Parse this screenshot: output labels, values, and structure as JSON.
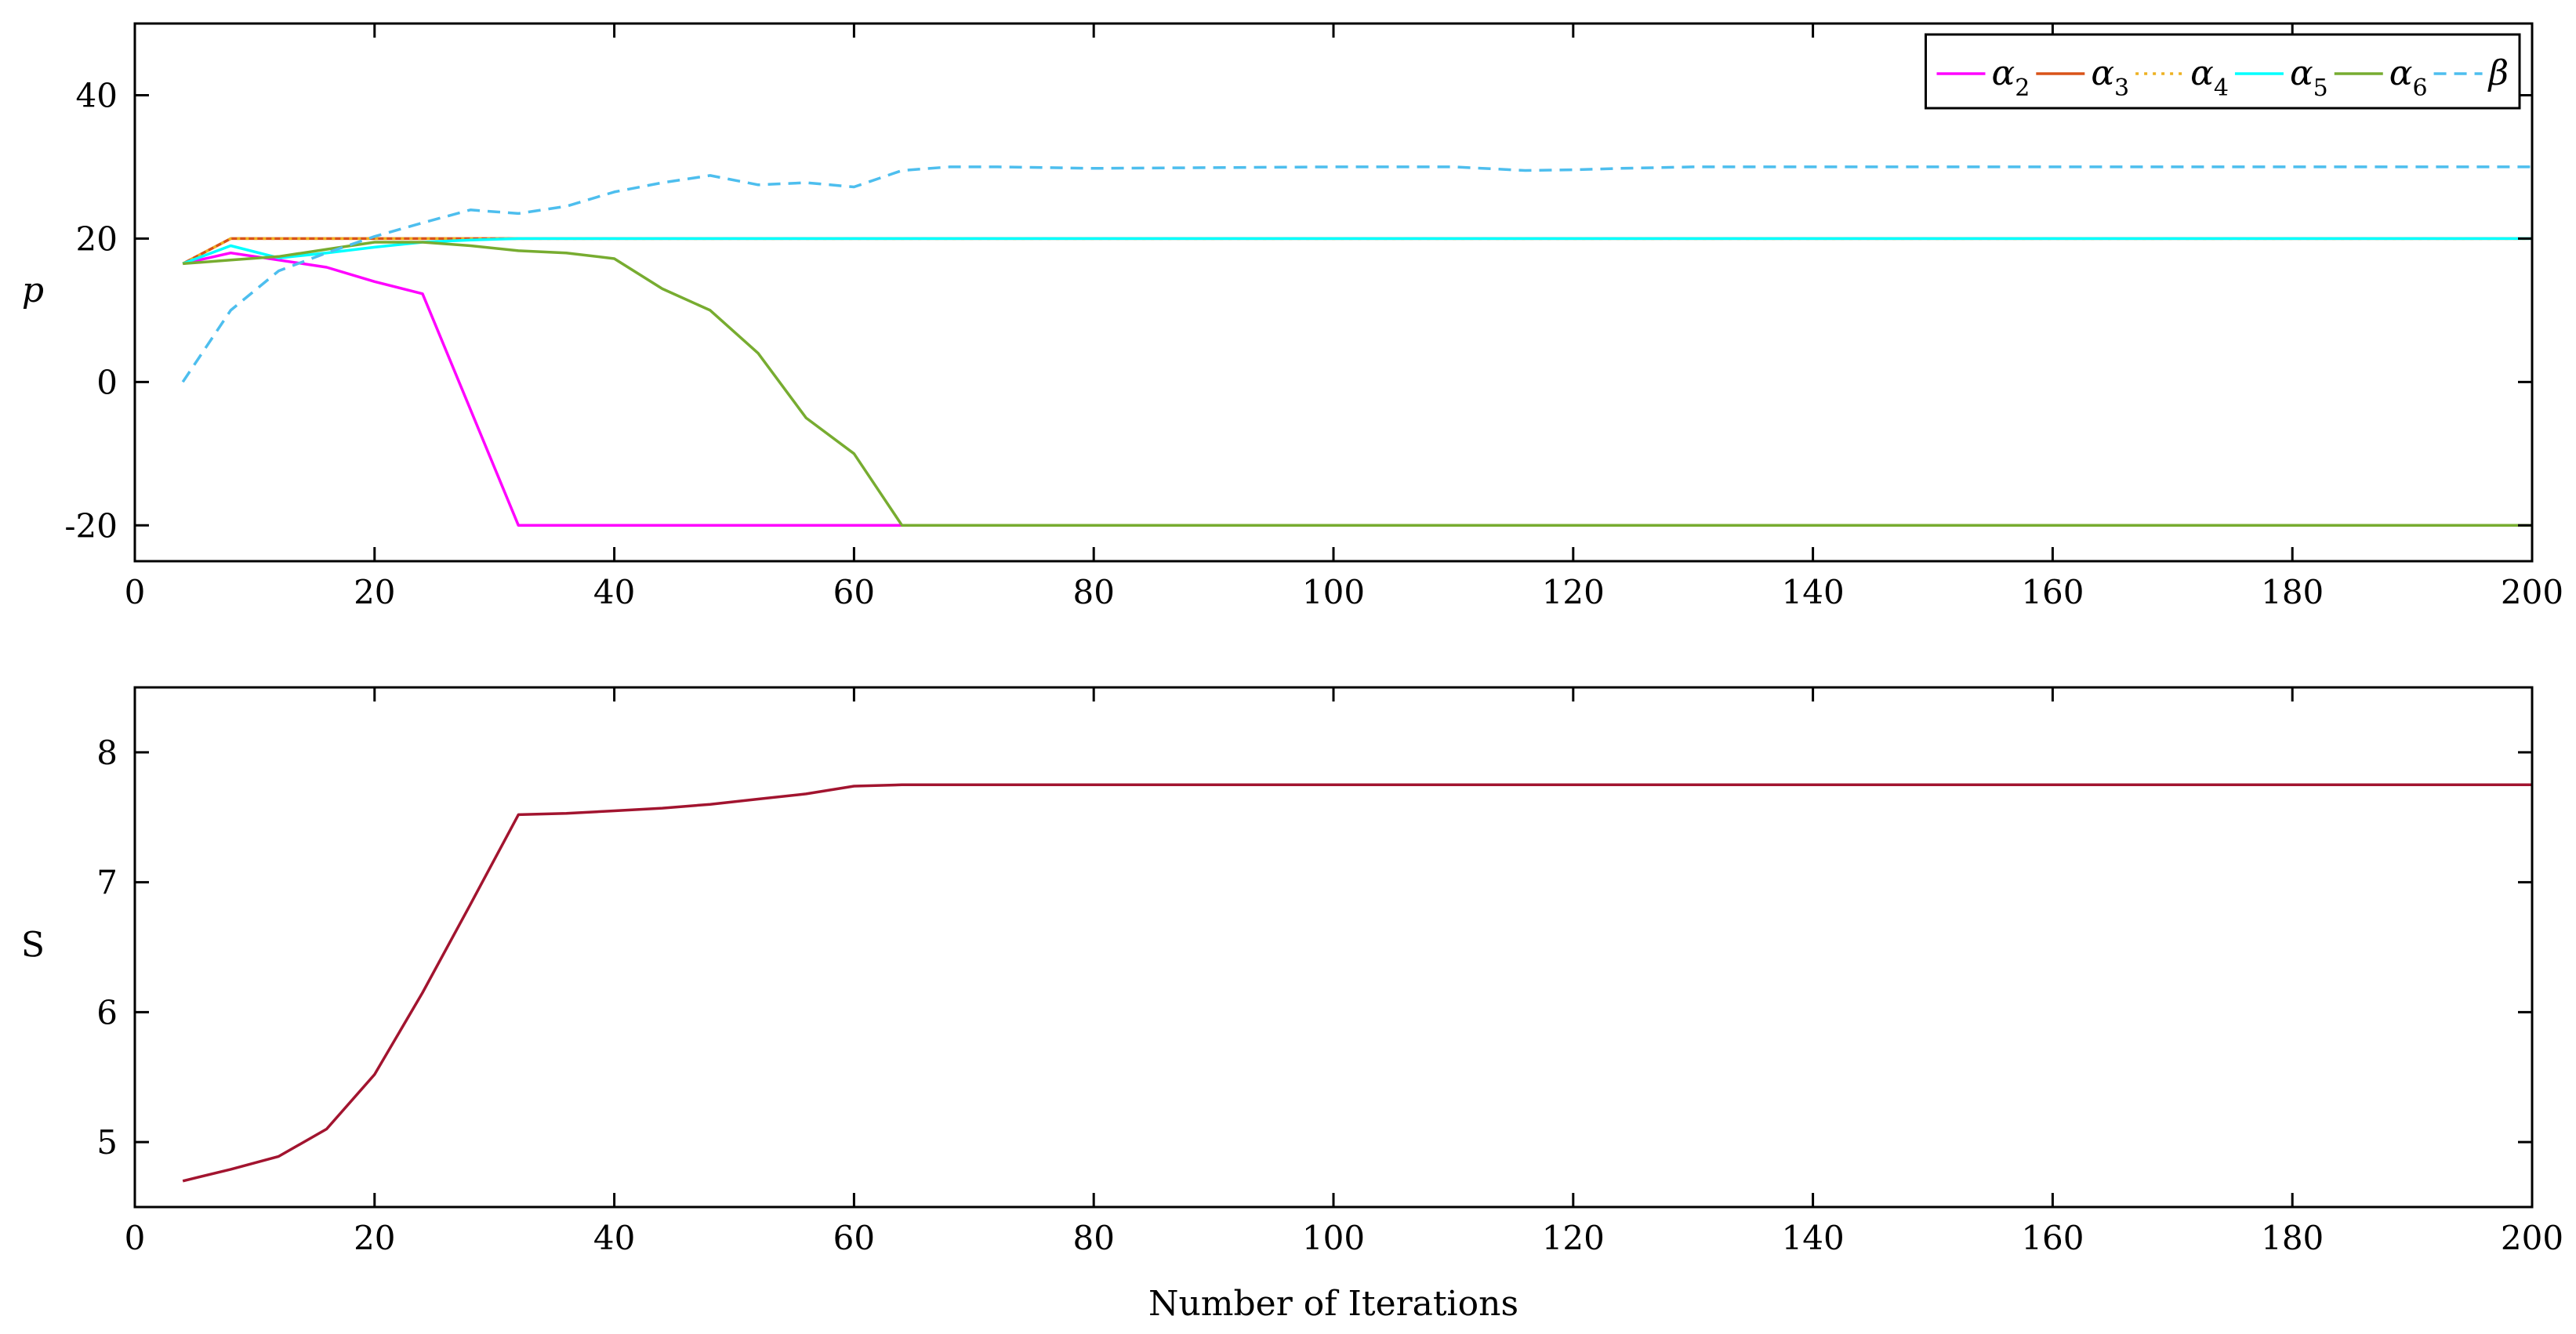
{
  "chart_data": [
    {
      "type": "line",
      "ylabel": "p",
      "xlabel": "",
      "xlim": [
        0,
        200
      ],
      "ylim": [
        -25,
        50
      ],
      "xticks": [
        0,
        20,
        40,
        60,
        80,
        100,
        120,
        140,
        160,
        180,
        200
      ],
      "yticks": [
        -20,
        0,
        20,
        40
      ],
      "grid": false,
      "legend": {
        "placement": "top-right",
        "orientation": "horizontal"
      },
      "series": [
        {
          "name": "α2",
          "symbol": "α",
          "subscript": "2",
          "color": "#ff00ff",
          "dash": "solid",
          "x": [
            4,
            8,
            12,
            16,
            20,
            24,
            32,
            40,
            48,
            56,
            64,
            100,
            150,
            200
          ],
          "y": [
            16.5,
            18,
            17,
            16,
            14,
            12.3,
            -20,
            -20,
            -20,
            -20,
            -20,
            -20,
            -20,
            -20
          ]
        },
        {
          "name": "α3",
          "symbol": "α",
          "subscript": "3",
          "color": "#d95319",
          "dash": "solid",
          "x": [
            4,
            8,
            12,
            16,
            20,
            24,
            28,
            32,
            40,
            60,
            100,
            150,
            200
          ],
          "y": [
            16.5,
            20,
            20,
            20,
            20,
            20,
            20,
            20,
            20,
            20,
            20,
            20,
            20
          ]
        },
        {
          "name": "α4",
          "symbol": "α",
          "subscript": "4",
          "color": "#edb120",
          "dash": "dotted",
          "x": [
            4,
            8,
            12,
            16,
            20,
            24,
            28,
            32,
            40,
            60,
            100,
            150,
            200
          ],
          "y": [
            16.5,
            20,
            20,
            20,
            20,
            20,
            20,
            20,
            20,
            20,
            20,
            20,
            20
          ]
        },
        {
          "name": "α5",
          "symbol": "α",
          "subscript": "5",
          "color": "#00ffff",
          "dash": "solid",
          "x": [
            4,
            8,
            12,
            16,
            20,
            24,
            28,
            32,
            40,
            60,
            100,
            150,
            200
          ],
          "y": [
            16.5,
            19,
            17.3,
            18,
            18.8,
            19.5,
            19.8,
            20,
            20,
            20,
            20,
            20,
            20
          ]
        },
        {
          "name": "α6",
          "symbol": "α",
          "subscript": "6",
          "color": "#77ac30",
          "dash": "solid",
          "x": [
            4,
            8,
            12,
            16,
            20,
            24,
            28,
            32,
            36,
            40,
            44,
            48,
            52,
            56,
            60,
            64,
            100,
            150,
            200
          ],
          "y": [
            16.5,
            17,
            17.5,
            18.5,
            19.5,
            19.5,
            19,
            18.3,
            18,
            17.2,
            13,
            10,
            4,
            -5,
            -10,
            -20,
            -20,
            -20,
            -20
          ]
        },
        {
          "name": "β",
          "symbol": "β",
          "subscript": "",
          "color": "#4dbeee",
          "dash": "dashed",
          "x": [
            4,
            8,
            12,
            16,
            20,
            24,
            28,
            32,
            36,
            40,
            44,
            48,
            52,
            56,
            60,
            64,
            68,
            72,
            80,
            100,
            110,
            116,
            120,
            124,
            130,
            150,
            180,
            200
          ],
          "y": [
            0,
            10,
            15.5,
            18,
            20.3,
            22.2,
            24,
            23.5,
            24.5,
            26.5,
            27.8,
            28.8,
            27.5,
            27.8,
            27.2,
            29.5,
            30,
            30,
            29.8,
            30,
            30,
            29.5,
            29.6,
            29.8,
            30,
            30,
            30,
            30
          ]
        }
      ]
    },
    {
      "type": "line",
      "ylabel": "S",
      "xlabel": "Number of Iterations",
      "xlim": [
        0,
        200
      ],
      "ylim": [
        4.5,
        8.5
      ],
      "xticks": [
        0,
        20,
        40,
        60,
        80,
        100,
        120,
        140,
        160,
        180,
        200
      ],
      "yticks": [
        5,
        6,
        7,
        8
      ],
      "grid": false,
      "series": [
        {
          "color": "#a2142f",
          "dash": "solid",
          "x": [
            4,
            8,
            12,
            16,
            20,
            24,
            28,
            32,
            36,
            40,
            44,
            48,
            52,
            56,
            60,
            64,
            80,
            100,
            150,
            200
          ],
          "y": [
            4.7,
            4.79,
            4.89,
            5.1,
            5.52,
            6.15,
            6.83,
            7.52,
            7.53,
            7.55,
            7.57,
            7.6,
            7.64,
            7.68,
            7.74,
            7.75,
            7.75,
            7.75,
            7.75,
            7.75
          ]
        }
      ]
    }
  ]
}
